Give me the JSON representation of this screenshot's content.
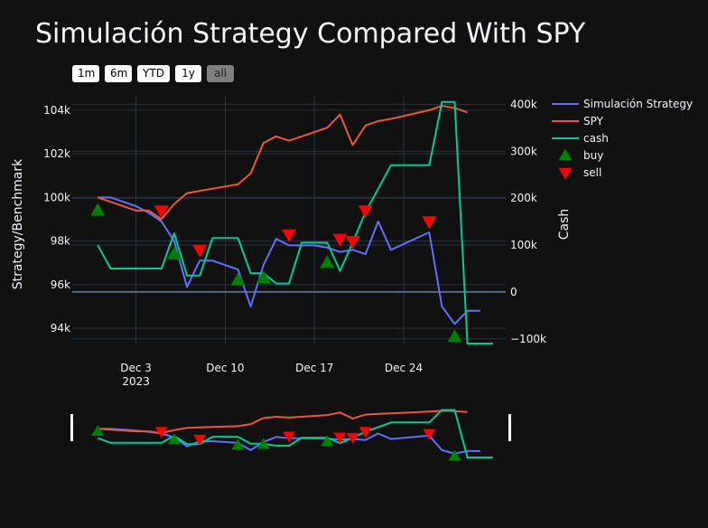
{
  "chart_data": {
    "type": "line",
    "title": "Simulación Strategy Compared With SPY",
    "range_buttons": [
      {
        "label": "1m",
        "active": false
      },
      {
        "label": "6m",
        "active": false
      },
      {
        "label": "YTD",
        "active": false
      },
      {
        "label": "1y",
        "active": false
      },
      {
        "label": "all",
        "active": true
      }
    ],
    "xaxis": {
      "range": [
        "2023-11-28",
        "2024-01-01"
      ],
      "ticks": [
        {
          "date": "2023-12-03",
          "label": "Dec 3",
          "sublabel": "2023"
        },
        {
          "date": "2023-12-10",
          "label": "Dec 10",
          "sublabel": ""
        },
        {
          "date": "2023-12-17",
          "label": "Dec 17",
          "sublabel": ""
        },
        {
          "date": "2023-12-24",
          "label": "Dec 24",
          "sublabel": ""
        }
      ]
    },
    "yaxis_left": {
      "label": "Strategy/Benchmark",
      "range": [
        93300,
        104700
      ],
      "ticks": [
        {
          "value": 94000,
          "label": "94k"
        },
        {
          "value": 96000,
          "label": "96k"
        },
        {
          "value": 98000,
          "label": "98k"
        },
        {
          "value": 100000,
          "label": "100k"
        },
        {
          "value": 102000,
          "label": "102k"
        },
        {
          "value": 104000,
          "label": "104k"
        }
      ]
    },
    "yaxis_right": {
      "label": "Cash",
      "range": [
        -110000,
        420000
      ],
      "ticks": [
        {
          "value": -100000,
          "label": "−100k"
        },
        {
          "value": 0,
          "label": "0"
        },
        {
          "value": 100000,
          "label": "100k"
        },
        {
          "value": 200000,
          "label": "200k"
        },
        {
          "value": 300000,
          "label": "300k"
        },
        {
          "value": 400000,
          "label": "400k"
        }
      ]
    },
    "series": [
      {
        "name": "Simulación Strategy",
        "color": "#636efa",
        "axis": "left",
        "x": [
          "2023-11-30",
          "2023-12-01",
          "2023-12-02",
          "2023-12-03",
          "2023-12-04",
          "2023-12-05",
          "2023-12-06",
          "2023-12-07",
          "2023-12-08",
          "2023-12-09",
          "2023-12-10",
          "2023-12-11",
          "2023-12-12",
          "2023-12-13",
          "2023-12-14",
          "2023-12-15",
          "2023-12-16",
          "2023-12-17",
          "2023-12-18",
          "2023-12-19",
          "2023-12-20",
          "2023-12-21",
          "2023-12-22",
          "2023-12-23",
          "2023-12-26",
          "2023-12-27",
          "2023-12-28",
          "2023-12-29",
          "2023-12-30"
        ],
        "values": [
          100000,
          100000,
          99800,
          99600,
          99300,
          98900,
          98000,
          95900,
          97100,
          97100,
          96900,
          96700,
          95000,
          96900,
          98100,
          97800,
          97800,
          97800,
          97700,
          97500,
          97600,
          97400,
          98900,
          97600,
          98400,
          95000,
          94200,
          94800,
          94800
        ]
      },
      {
        "name": "SPY",
        "color": "#ef553b",
        "axis": "left",
        "x": [
          "2023-11-30",
          "2023-12-01",
          "2023-12-03",
          "2023-12-04",
          "2023-12-05",
          "2023-12-06",
          "2023-12-07",
          "2023-12-08",
          "2023-12-11",
          "2023-12-12",
          "2023-12-13",
          "2023-12-14",
          "2023-12-15",
          "2023-12-18",
          "2023-12-19",
          "2023-12-20",
          "2023-12-21",
          "2023-12-22",
          "2023-12-23",
          "2023-12-26",
          "2023-12-27",
          "2023-12-28",
          "2023-12-29"
        ],
        "values": [
          100000,
          99800,
          99400,
          99400,
          99000,
          99700,
          100200,
          100300,
          100600,
          101100,
          102500,
          102800,
          102600,
          103200,
          103800,
          102400,
          103300,
          103500,
          103600,
          104000,
          104200,
          104100,
          103900
        ]
      },
      {
        "name": "cash",
        "color": "#00cc96",
        "axis": "right",
        "x": [
          "2023-11-30",
          "2023-12-01",
          "2023-12-02",
          "2023-12-03",
          "2023-12-04",
          "2023-12-05",
          "2023-12-06",
          "2023-12-07",
          "2023-12-08",
          "2023-12-09",
          "2023-12-10",
          "2023-12-11",
          "2023-12-12",
          "2023-12-13",
          "2023-12-14",
          "2023-12-15",
          "2023-12-16",
          "2023-12-17",
          "2023-12-18",
          "2023-12-19",
          "2023-12-20",
          "2023-12-21",
          "2023-12-22",
          "2023-12-23",
          "2023-12-26",
          "2023-12-27",
          "2023-12-28",
          "2023-12-29",
          "2023-12-30",
          "2023-12-31"
        ],
        "values": [
          100000,
          50000,
          50000,
          50000,
          50000,
          50000,
          125000,
          35000,
          35000,
          115000,
          115000,
          115000,
          40000,
          40000,
          18000,
          18000,
          105000,
          105000,
          105000,
          45000,
          105000,
          170000,
          220000,
          270000,
          270000,
          405000,
          405000,
          -110000,
          -110000,
          -110000
        ]
      },
      {
        "name": "buy",
        "color": "#008000",
        "marker": "triangle-up",
        "axis": "left",
        "x": [
          "2023-11-30",
          "2023-12-06",
          "2023-12-11",
          "2023-12-13",
          "2023-12-18",
          "2023-12-28"
        ],
        "values": [
          99400,
          97400,
          96200,
          96300,
          97000,
          93600
        ]
      },
      {
        "name": "sell",
        "color": "#ff0000",
        "marker": "triangle-down",
        "axis": "left",
        "x": [
          "2023-12-05",
          "2023-12-08",
          "2023-12-15",
          "2023-12-19",
          "2023-12-20",
          "2023-12-21",
          "2023-12-26"
        ],
        "values": [
          99400,
          97600,
          98300,
          98100,
          98000,
          99400,
          98900
        ]
      }
    ],
    "legend_position": "top-right",
    "range_slider": true
  }
}
